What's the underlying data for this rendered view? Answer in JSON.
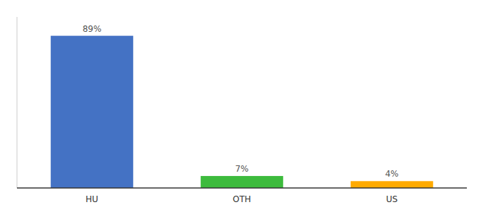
{
  "chart_data": {
    "type": "bar",
    "categories": [
      "HU",
      "OTH",
      "US"
    ],
    "values": [
      89,
      7,
      4
    ],
    "value_labels": [
      "89%",
      "7%",
      "4%"
    ],
    "colors": [
      "#4472c4",
      "#3dbb3d",
      "#ffaa00"
    ],
    "ylim": [
      0,
      100
    ],
    "data_labels": true,
    "tick_labels": "x",
    "grid": false
  }
}
